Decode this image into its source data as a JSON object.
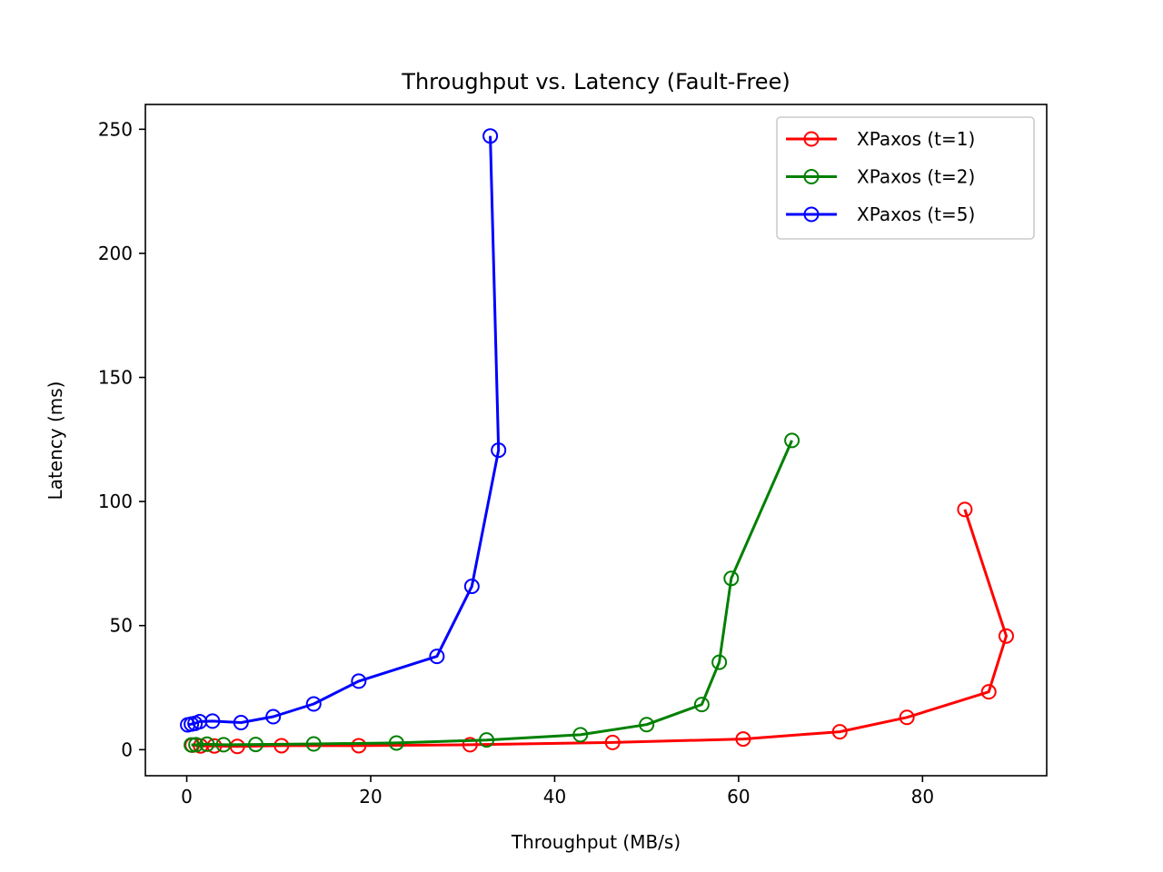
{
  "chart_data": {
    "type": "line",
    "title": "Throughput vs. Latency (Fault-Free)",
    "xlabel": "Throughput (MB/s)",
    "ylabel": "Latency (ms)",
    "xlim": [
      -4.5,
      93.5
    ],
    "ylim": [
      -10.5,
      260
    ],
    "xticks": [
      0,
      20,
      40,
      60,
      80
    ],
    "yticks": [
      0,
      50,
      100,
      150,
      200,
      250
    ],
    "grid": false,
    "legend_position": "top-right",
    "marker": "open-circle",
    "series": [
      {
        "name": "XPaxos (t=1)",
        "color": "#ff0000",
        "points": [
          [
            0.6,
            1.8
          ],
          [
            1.5,
            1.5
          ],
          [
            3.0,
            1.5
          ],
          [
            5.5,
            1.3
          ],
          [
            10.3,
            1.6
          ],
          [
            18.7,
            1.6
          ],
          [
            30.8,
            2.0
          ],
          [
            46.3,
            2.9
          ],
          [
            60.5,
            4.3
          ],
          [
            71.0,
            7.2
          ],
          [
            78.3,
            13.0
          ],
          [
            87.2,
            23.3
          ],
          [
            89.1,
            45.8
          ],
          [
            84.6,
            96.8
          ]
        ]
      },
      {
        "name": "XPaxos (t=2)",
        "color": "#008000",
        "points": [
          [
            0.5,
            1.9
          ],
          [
            1.0,
            2.0
          ],
          [
            2.2,
            2.2
          ],
          [
            4.0,
            2.0
          ],
          [
            7.5,
            2.1
          ],
          [
            13.8,
            2.3
          ],
          [
            22.8,
            2.7
          ],
          [
            32.6,
            3.9
          ],
          [
            42.8,
            6.0
          ],
          [
            50.0,
            10.1
          ],
          [
            56.0,
            18.2
          ],
          [
            57.9,
            35.2
          ],
          [
            59.2,
            69.0
          ],
          [
            65.8,
            124.6
          ]
        ]
      },
      {
        "name": "XPaxos (t=5)",
        "color": "#0000ff",
        "points": [
          [
            0.1,
            10.0
          ],
          [
            0.5,
            10.3
          ],
          [
            0.9,
            10.6
          ],
          [
            1.4,
            11.3
          ],
          [
            2.8,
            11.5
          ],
          [
            5.9,
            10.9
          ],
          [
            9.4,
            13.3
          ],
          [
            13.8,
            18.4
          ],
          [
            18.7,
            27.6
          ],
          [
            27.2,
            37.6
          ],
          [
            31.0,
            65.8
          ],
          [
            33.9,
            120.7
          ],
          [
            33.0,
            247.3
          ]
        ]
      }
    ]
  }
}
